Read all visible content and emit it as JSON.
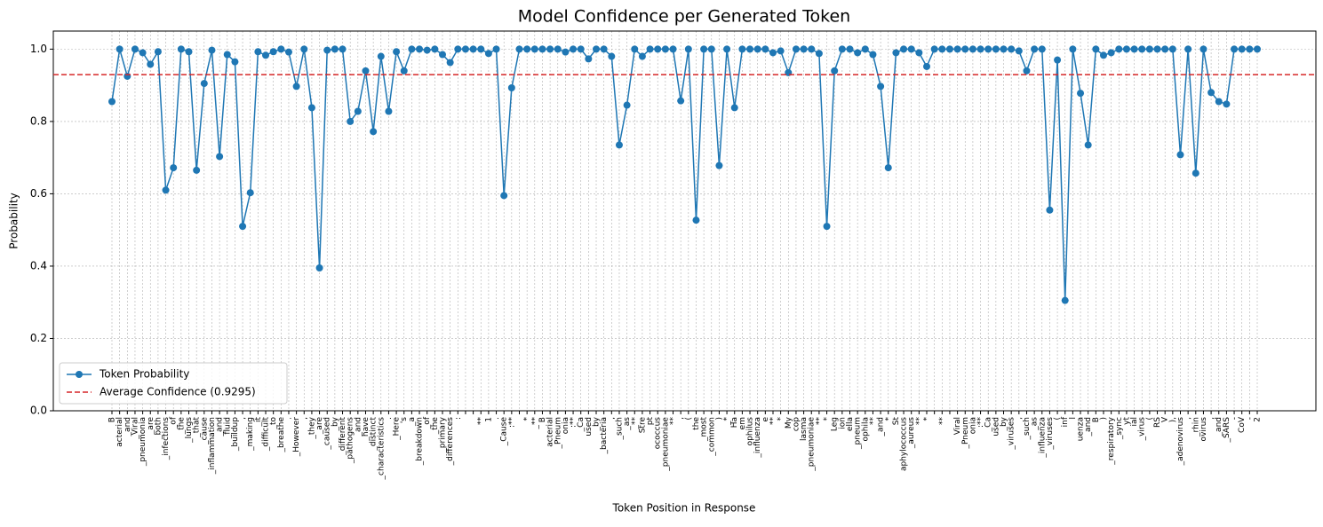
{
  "chart_data": {
    "type": "line",
    "title": "Model Confidence per Generated Token",
    "x_label": "Token Position in Response",
    "y_label": "Probability",
    "categories": [
      "B",
      "acterial",
      "_and",
      "_Viral",
      "_pneumonia",
      "_are",
      "_both",
      "_infections",
      "_of",
      "_the",
      "_lungs",
      "_that",
      "_cause",
      "_inflammation",
      "_and",
      "_fluid",
      "_buildup",
      ",",
      "_making",
      "_it",
      "_difficult",
      "_to",
      "_breathe",
      ".",
      "_However",
      ",",
      "_they",
      "_are",
      "_caused",
      "_by",
      "_different",
      "_pathogens",
      "_and",
      "_have",
      "_distinct",
      "_characteristics",
      ".",
      "_Here",
      "'s",
      "_a",
      "_breakdown",
      "_of",
      "_the",
      "_primary",
      "_differences",
      ":",
      null,
      null,
      "**",
      "1",
      ".",
      "_Cause",
      ":**",
      null,
      "*",
      "_**",
      "B",
      "acterial",
      "_Pneum",
      "onia",
      ":**",
      "_Ca",
      "used",
      "_by",
      "_bacteria",
      ",",
      "_such",
      "_as",
      "_**",
      "Stre",
      "pt",
      "ococcus",
      "_pneumoniae",
      "**",
      ",",
      "(",
      "the",
      "_most",
      "_common",
      ")",
      "_*",
      "Ha",
      "em",
      "ophilus",
      "_influenza",
      "e",
      "**",
      "*",
      "My",
      "cop",
      "lasma",
      "_pneumoniae",
      "**",
      "*",
      "Leg",
      "ion",
      "ella",
      "_pneum",
      "ophila",
      "**",
      "_and",
      "*",
      "St",
      "aphylococcus",
      "_aureus",
      "**",
      "*",
      null,
      "**",
      null,
      "Viral",
      "_Pneum",
      "onia",
      ":**",
      "_Ca",
      "used",
      "_by",
      "_viruses",
      ",",
      "_such",
      "_as",
      "_influenza",
      "_viruses",
      "(",
      "inf",
      "l",
      "uenza",
      "_and",
      "B",
      ")",
      "_respiratory",
      "_sync",
      "yt",
      "ial",
      "_virus",
      "(",
      "RS",
      "V",
      "),",
      "_adenovirus",
      ",",
      "_rhin",
      "ovirus",
      ",",
      "_and",
      "_SARS",
      "-",
      "CoV",
      "-",
      "2"
    ],
    "series": [
      {
        "name": "Token Probability",
        "color": "#1f77b4",
        "values": [
          0.855,
          1.0,
          0.925,
          1.0,
          0.99,
          0.958,
          0.993,
          0.61,
          0.672,
          1.0,
          0.993,
          0.665,
          0.905,
          0.997,
          0.703,
          0.985,
          0.965,
          0.51,
          0.603,
          0.993,
          0.983,
          0.993,
          1.0,
          0.992,
          0.897,
          1.0,
          0.838,
          0.395,
          0.997,
          1.0,
          1.0,
          0.8,
          0.828,
          0.94,
          0.772,
          0.98,
          0.828,
          0.993,
          0.94,
          1.0,
          1.0,
          0.997,
          1.0,
          0.985,
          0.963,
          1.0,
          1.0,
          1.0,
          1.0,
          0.988,
          1.0,
          0.595,
          0.893,
          1.0,
          1.0,
          1.0,
          1.0,
          1.0,
          1.0,
          0.992,
          1.0,
          1.0,
          0.973,
          1.0,
          1.0,
          0.98,
          0.735,
          0.845,
          1.0,
          0.98,
          1.0,
          1.0,
          1.0,
          1.0,
          0.857,
          1.0,
          0.527,
          1.0,
          1.0,
          0.678,
          1.0,
          0.838,
          1.0,
          1.0,
          1.0,
          1.0,
          0.99,
          0.995,
          0.935,
          1.0,
          1.0,
          1.0,
          0.988,
          0.51,
          0.94,
          1.0,
          1.0,
          0.99,
          1.0,
          0.985,
          0.897,
          0.672,
          0.99,
          1.0,
          1.0,
          0.99,
          0.952,
          1.0,
          1.0,
          1.0,
          1.0,
          1.0,
          1.0,
          1.0,
          1.0,
          1.0,
          1.0,
          1.0,
          0.995,
          0.94,
          1.0,
          1.0,
          0.555,
          0.97,
          0.305,
          1.0,
          0.878,
          0.735,
          1.0,
          0.983,
          0.99,
          1.0,
          1.0,
          1.0,
          1.0,
          1.0,
          1.0,
          1.0,
          1.0,
          0.708,
          1.0,
          0.657,
          1.0,
          0.88,
          0.855,
          0.848,
          1.0,
          1.0,
          1.0,
          1.0
        ]
      }
    ],
    "average": 0.9295,
    "average_color": "#d62728",
    "average_label": "Average Confidence (0.9295)",
    "ylim": [
      0,
      1.05
    ],
    "yticks": [
      {
        "value": 0,
        "label": "0.0"
      },
      {
        "value": 0.2,
        "label": "0.2"
      },
      {
        "value": 0.4,
        "label": "0.4"
      },
      {
        "value": 0.6,
        "label": "0.6"
      },
      {
        "value": 0.8,
        "label": "0.8"
      },
      {
        "value": 1,
        "label": "1.0"
      }
    ],
    "grid": true,
    "legend": "lower left"
  }
}
